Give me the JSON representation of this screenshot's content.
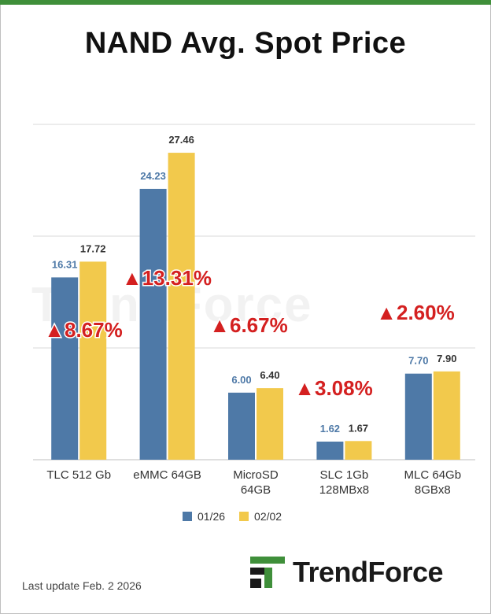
{
  "title": "NAND Avg. Spot Price",
  "colors": {
    "series1": "#4e79a7",
    "series2": "#f2c94c",
    "change": "#d42020",
    "accent": "#3f8f3a"
  },
  "chart_data": {
    "type": "bar",
    "title": "NAND Avg. Spot Price",
    "categories": [
      "TLC 512 Gb",
      "eMMC 64GB",
      "MicroSD 64GB",
      "SLC 1Gb 128MBx8",
      "MLC 64Gb 8GBx8"
    ],
    "category_lines": [
      [
        "TLC 512 Gb"
      ],
      [
        "eMMC 64GB"
      ],
      [
        "MicroSD",
        "64GB"
      ],
      [
        "SLC 1Gb",
        "128MBx8"
      ],
      [
        "MLC 64Gb",
        "8GBx8"
      ]
    ],
    "series": [
      {
        "name": "01/26",
        "values": [
          16.31,
          24.23,
          6.0,
          1.62,
          7.7
        ],
        "labels": [
          "16.31",
          "24.23",
          "6.00",
          "1.62",
          "7.70"
        ]
      },
      {
        "name": "02/02",
        "values": [
          17.72,
          27.46,
          6.4,
          1.67,
          7.9
        ],
        "labels": [
          "17.72",
          "27.46",
          "6.40",
          "1.67",
          "7.90"
        ]
      }
    ],
    "changes": [
      "▲8.67%",
      "▲13.31%",
      "▲6.67%",
      "▲3.08%",
      "▲2.60%"
    ],
    "ylim": [
      0,
      30
    ],
    "grid": true,
    "legend_position": "bottom"
  },
  "watermark": "TrendForce",
  "footer": {
    "last_update": "Last update Feb. 2  2026",
    "brand": "TrendForce"
  }
}
